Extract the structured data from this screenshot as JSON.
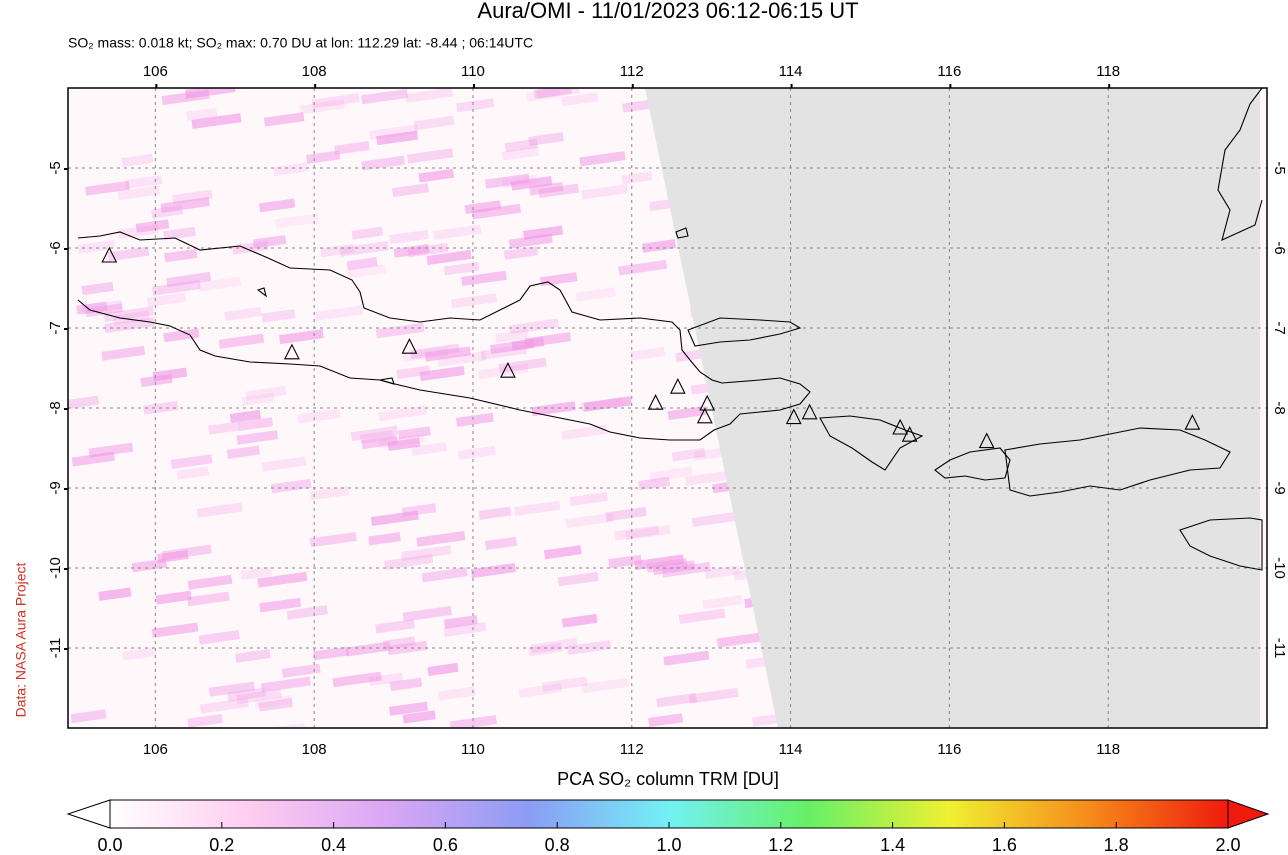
{
  "title": "Aura/OMI - 11/01/2023 06:12-06:15 UT",
  "subtitle": "SO₂ mass: 0.018 kt; SO₂ max: 0.70 DU at lon: 112.29 lat: -8.44 ; 06:14UTC",
  "credit": "Data: NASA Aura Project",
  "map": {
    "xlim": [
      104.9,
      120
    ],
    "ylim": [
      -12,
      -4
    ],
    "xticks": [
      106,
      108,
      110,
      112,
      114,
      116,
      118
    ],
    "yticks": [
      -5,
      -6,
      -7,
      -8,
      -9,
      -10,
      -11
    ],
    "grid": true,
    "volcanoes": [
      {
        "lon": 105.42,
        "lat": -6.1
      },
      {
        "lon": 107.72,
        "lat": -7.31
      },
      {
        "lon": 109.2,
        "lat": -7.24
      },
      {
        "lon": 110.44,
        "lat": -7.54
      },
      {
        "lon": 112.3,
        "lat": -7.94
      },
      {
        "lon": 112.58,
        "lat": -7.74
      },
      {
        "lon": 112.95,
        "lat": -7.95
      },
      {
        "lon": 112.92,
        "lat": -8.11
      },
      {
        "lon": 114.04,
        "lat": -8.12
      },
      {
        "lon": 114.24,
        "lat": -8.06
      },
      {
        "lon": 115.38,
        "lat": -8.25
      },
      {
        "lon": 115.5,
        "lat": -8.34
      },
      {
        "lon": 116.47,
        "lat": -8.42
      },
      {
        "lon": 119.06,
        "lat": -8.19
      }
    ]
  },
  "colorbar": {
    "title": "PCA SO₂ column TRM [DU]",
    "lim": [
      0,
      2
    ],
    "colors": [
      "#ffffff",
      "#ffccf0",
      "#d9a6f5",
      "#8c9cf5",
      "#73f0f5",
      "#66f066",
      "#f0f033",
      "#f58c1a",
      "#f01a0d"
    ],
    "ticks": [
      {
        "value": 0,
        "label": "0.0"
      },
      {
        "value": 0.2,
        "label": "0.2"
      },
      {
        "value": 0.4,
        "label": "0.4"
      },
      {
        "value": 0.6,
        "label": "0.6"
      },
      {
        "value": 0.8,
        "label": "0.8"
      },
      {
        "value": 1,
        "label": "1.0"
      },
      {
        "value": 1.2,
        "label": "1.2"
      },
      {
        "value": 1.4,
        "label": "1.4"
      },
      {
        "value": 1.6,
        "label": "1.6"
      },
      {
        "value": 1.8,
        "label": "1.8"
      },
      {
        "value": 2,
        "label": "2.0"
      }
    ]
  }
}
